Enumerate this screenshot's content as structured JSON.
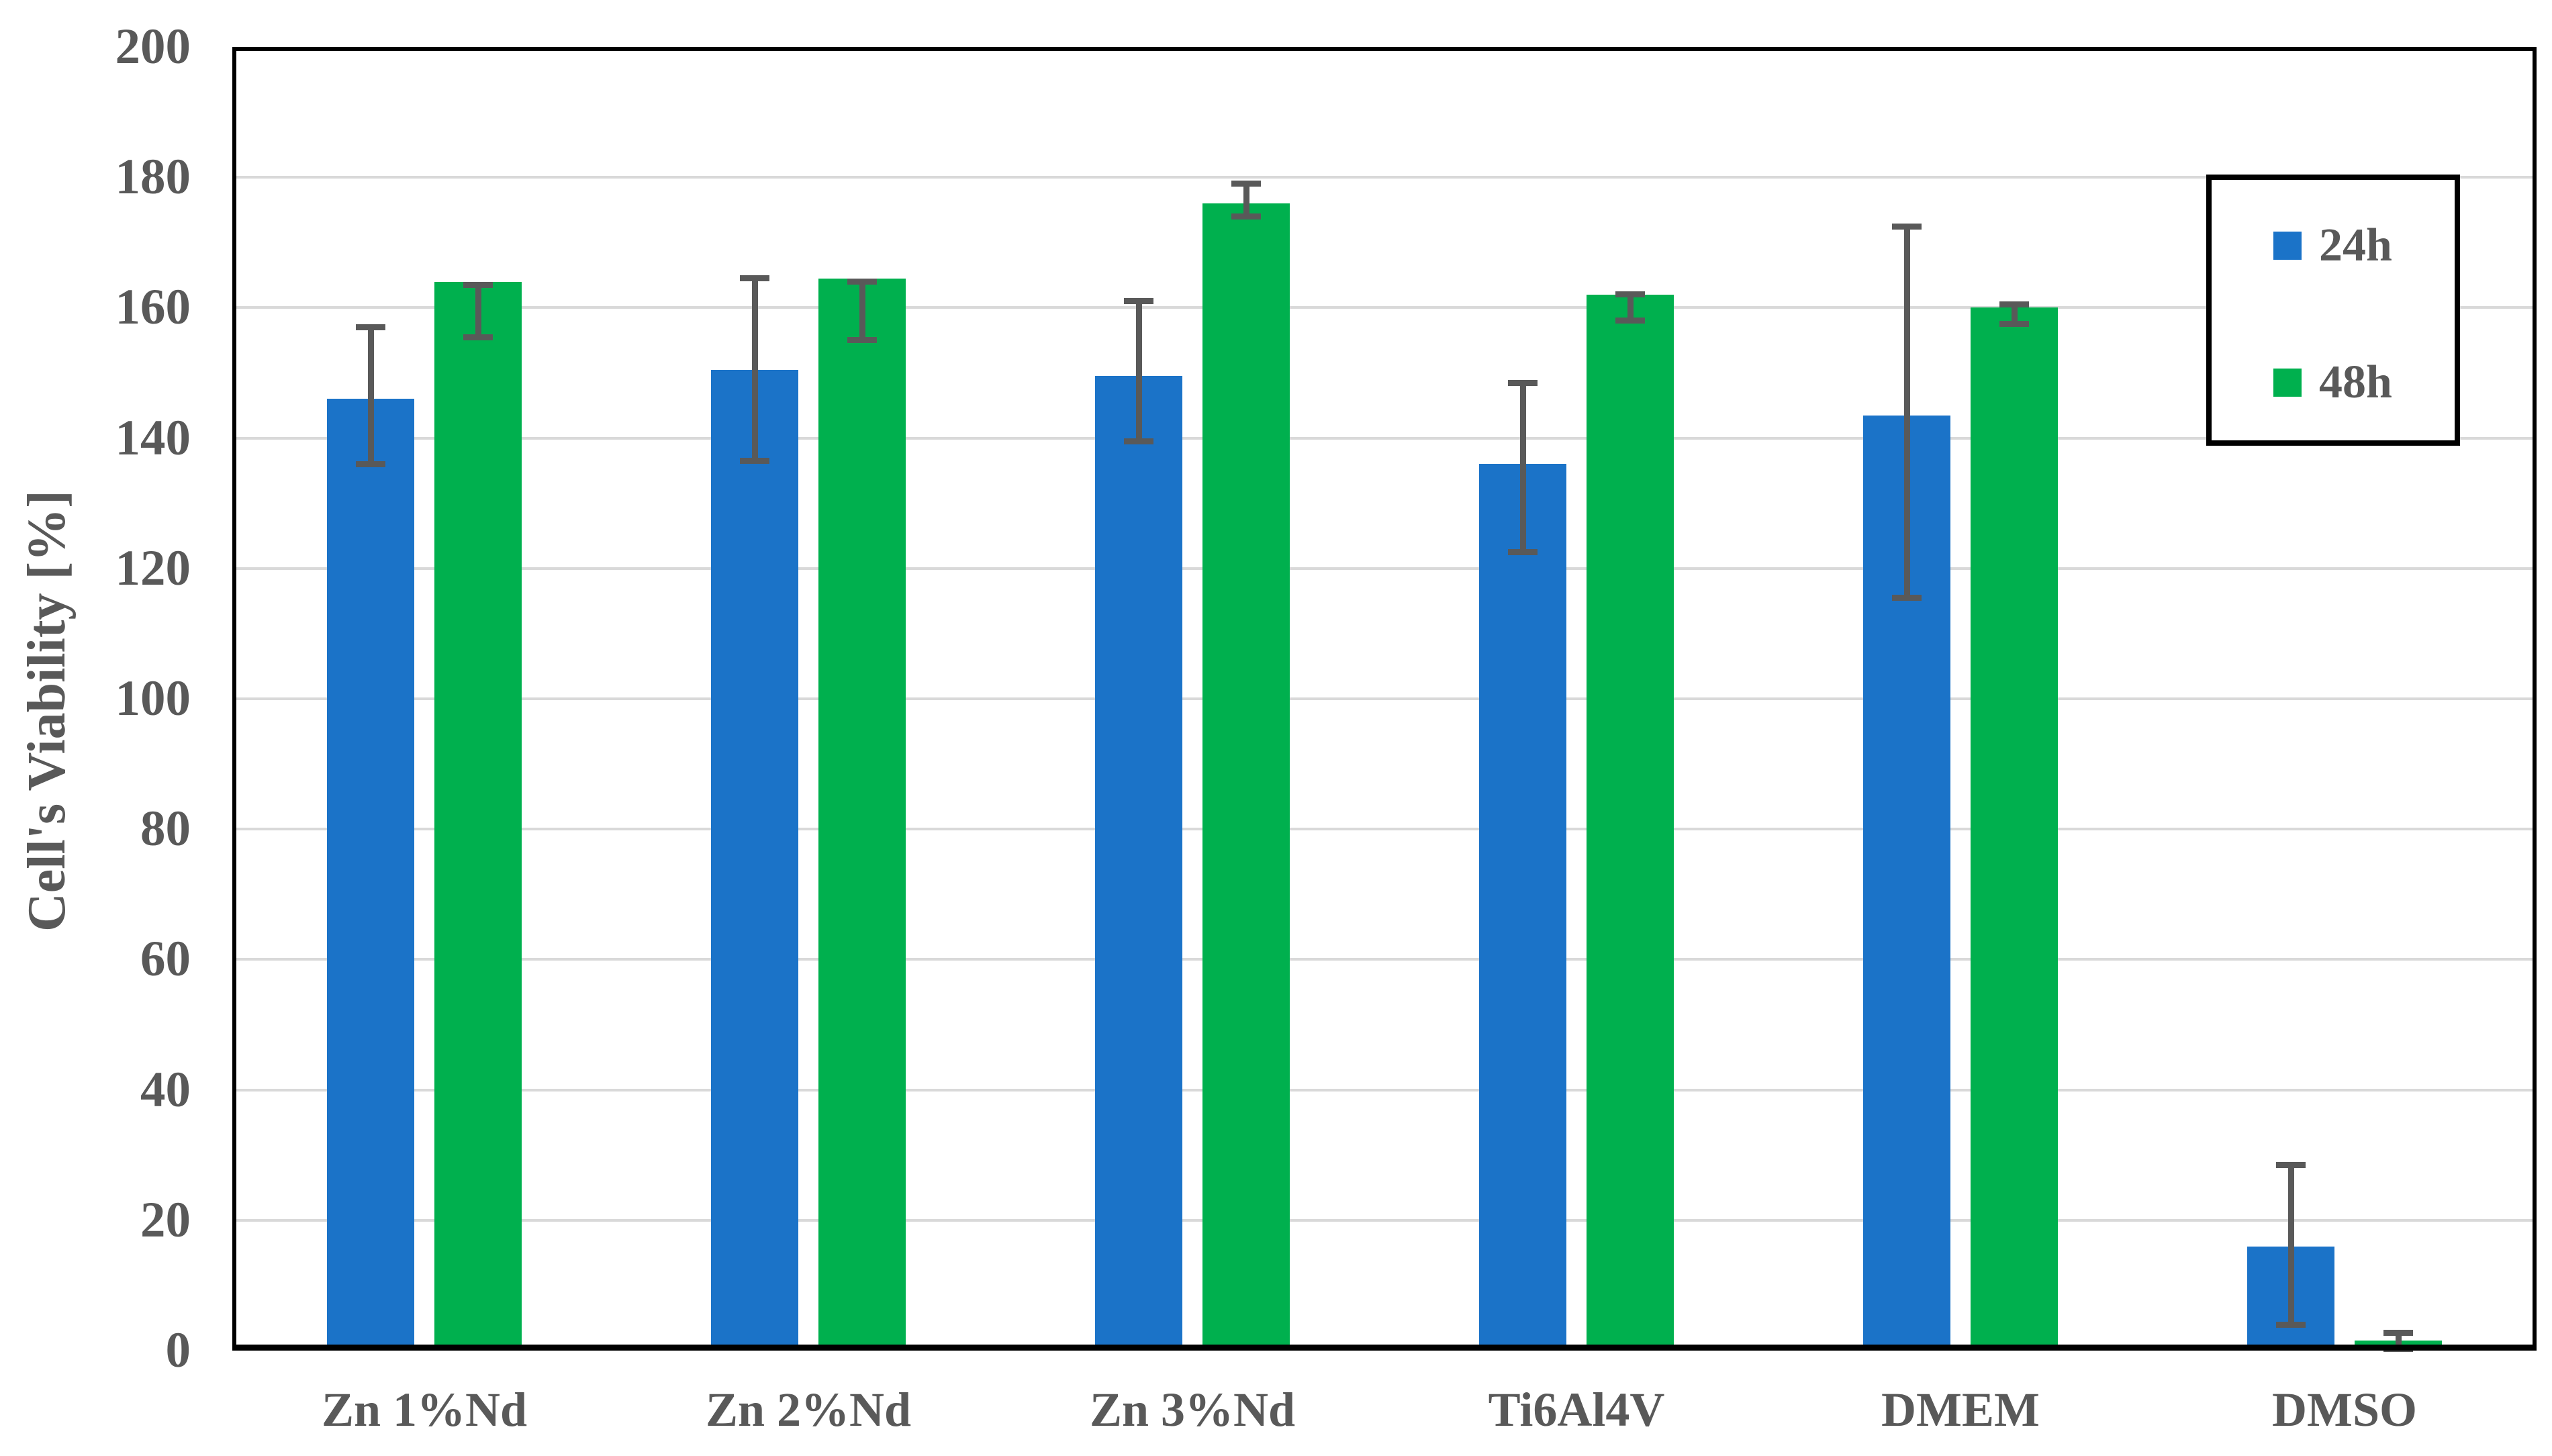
{
  "chart_data": {
    "type": "bar",
    "title": "",
    "xlabel": "",
    "ylabel": "Cell's Viability [%]",
    "ylim": [
      0,
      200
    ],
    "ytick_step": 20,
    "grid": true,
    "legend_position": "top-right",
    "categories": [
      "Zn 1%Nd",
      "Zn 2%Nd",
      "Zn 3%Nd",
      "Ti6Al4V",
      "DMEM",
      "DMSO"
    ],
    "series": [
      {
        "name": "24h",
        "color": "#1B73C8",
        "values": [
          146,
          150.5,
          149.5,
          136,
          143.5,
          16
        ],
        "err_low": [
          136,
          136.5,
          139.5,
          122.5,
          115.5,
          4
        ],
        "err_high": [
          157,
          164.5,
          161,
          148.5,
          172.5,
          28.5
        ]
      },
      {
        "name": "48h",
        "color": "#00B04E",
        "values": [
          164,
          164.5,
          176,
          162,
          160,
          1.5
        ],
        "err_low": [
          155.5,
          155,
          174,
          158,
          157.5,
          0.3
        ],
        "err_high": [
          163.5,
          164,
          179,
          162,
          160.5,
          2.7
        ]
      }
    ]
  },
  "colors": {
    "text": "#595959",
    "gridline": "#D9D9D9",
    "axis": "#000000",
    "error_bar": "#595959",
    "background": "#FFFFFF"
  }
}
